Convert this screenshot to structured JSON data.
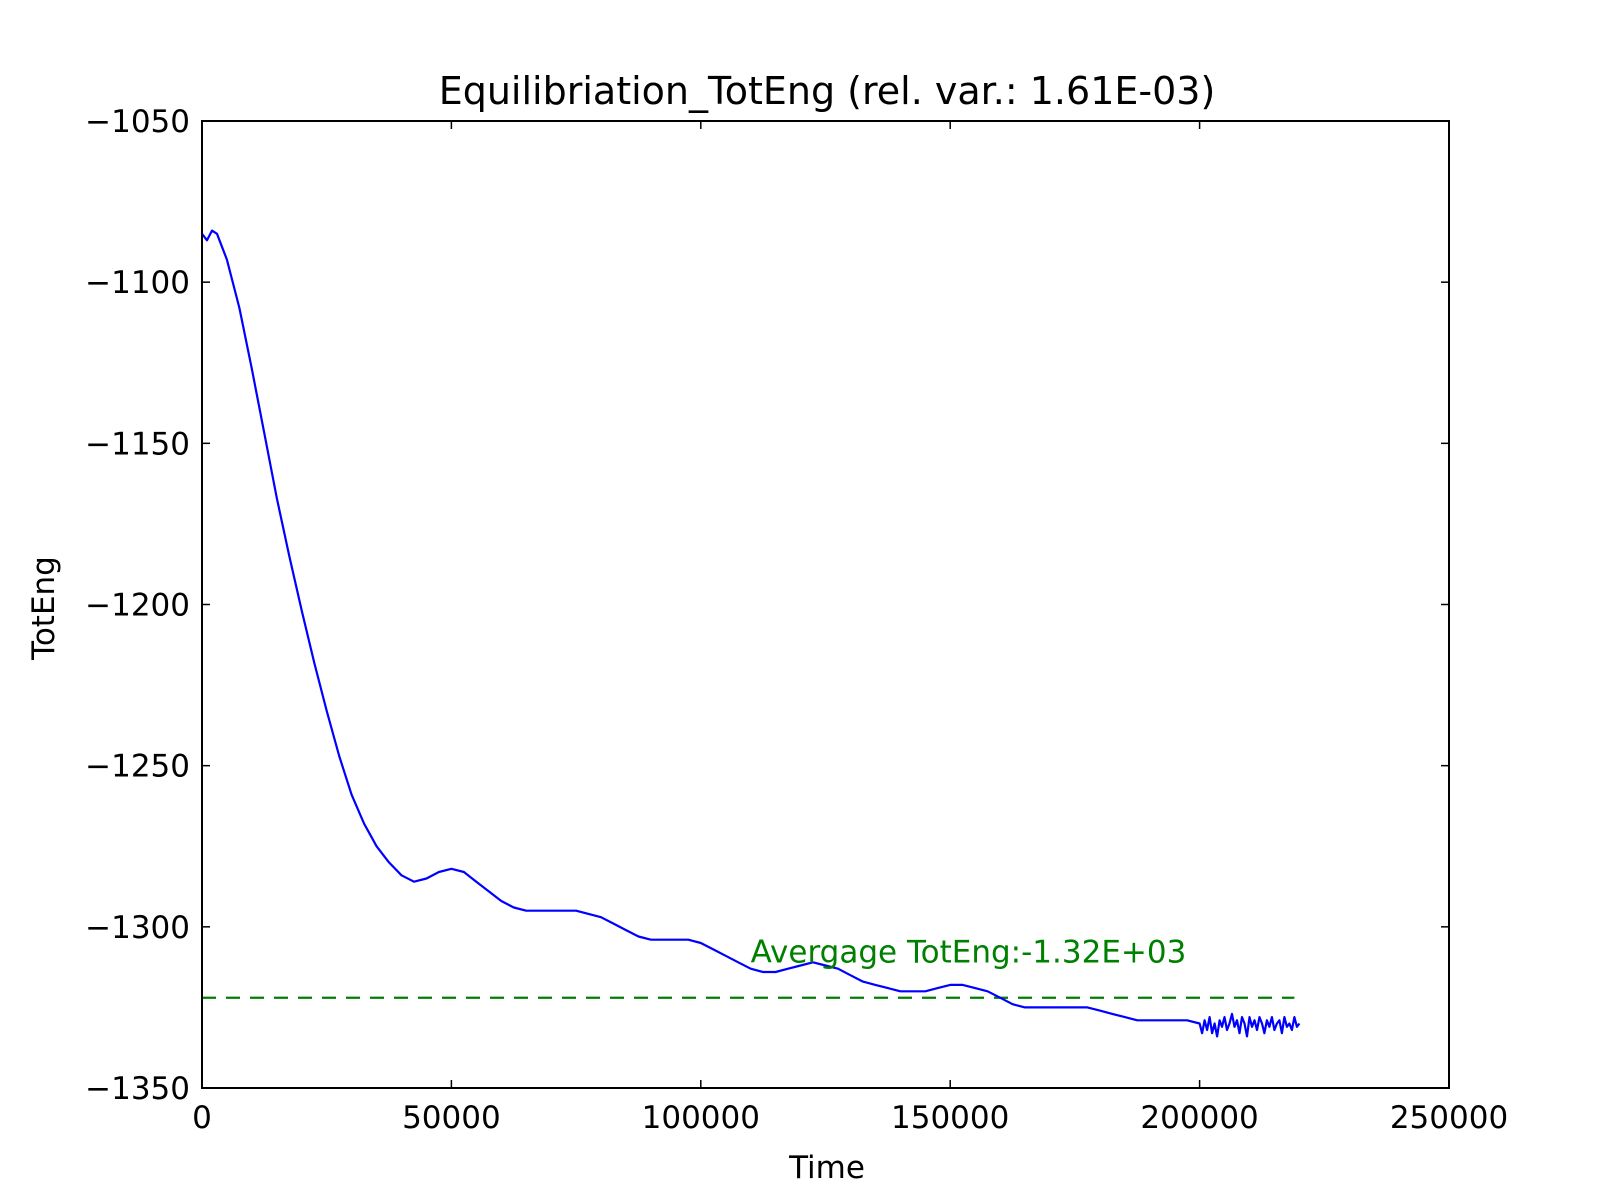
{
  "chart_data": {
    "type": "line",
    "title": "Equilibriation_TotEng (rel. var.: 1.61E-03)",
    "xlabel": "Time",
    "ylabel": "TotEng",
    "xlim": [
      0,
      250000
    ],
    "ylim": [
      -1350,
      -1050
    ],
    "xticks": [
      0,
      50000,
      100000,
      150000,
      200000,
      250000
    ],
    "yticks": [
      -1050,
      -1100,
      -1150,
      -1200,
      -1250,
      -1300,
      -1350
    ],
    "grid": false,
    "series": [
      {
        "color": "#0000ff",
        "x": [
          0,
          1000,
          2000,
          3000,
          5000,
          7500,
          10000,
          12500,
          15000,
          17500,
          20000,
          22500,
          25000,
          27500,
          30000,
          32500,
          35000,
          37500,
          40000,
          42500,
          45000,
          47500,
          50000,
          52500,
          55000,
          57500,
          60000,
          62500,
          65000,
          67500,
          70000,
          75000,
          80000,
          82500,
          85000,
          87500,
          90000,
          92500,
          95000,
          97500,
          100000,
          102500,
          105000,
          107500,
          110000,
          112500,
          115000,
          117500,
          120000,
          122500,
          125000,
          127500,
          130000,
          132500,
          135000,
          137500,
          140000,
          142500,
          145000,
          147500,
          150000,
          152500,
          155000,
          157500,
          160000,
          162500,
          165000,
          167500,
          170000,
          172500,
          175000,
          177500,
          180000,
          182500,
          185000,
          187500,
          190000,
          192500,
          195000,
          197500,
          200000,
          200500,
          201000,
          201500,
          202000,
          202500,
          203000,
          203500,
          204000,
          204500,
          205000,
          205500,
          206000,
          206500,
          207000,
          207500,
          208000,
          208500,
          209000,
          209500,
          210000,
          210500,
          211000,
          211500,
          212000,
          212500,
          213000,
          213500,
          214000,
          214500,
          215000,
          215500,
          216000,
          216500,
          217000,
          217500,
          218000,
          218500,
          219000,
          219500,
          220000
        ],
        "y": [
          -1085,
          -1087,
          -1084,
          -1085,
          -1093,
          -1108,
          -1127,
          -1147,
          -1167,
          -1185,
          -1202,
          -1218,
          -1233,
          -1247,
          -1259,
          -1268,
          -1275,
          -1280,
          -1284,
          -1286,
          -1285,
          -1283,
          -1282,
          -1283,
          -1286,
          -1289,
          -1292,
          -1294,
          -1295,
          -1295,
          -1295,
          -1295,
          -1297,
          -1299,
          -1301,
          -1303,
          -1304,
          -1304,
          -1304,
          -1304,
          -1305,
          -1307,
          -1309,
          -1311,
          -1313,
          -1314,
          -1314,
          -1313,
          -1312,
          -1311,
          -1312,
          -1313,
          -1315,
          -1317,
          -1318,
          -1319,
          -1320,
          -1320,
          -1320,
          -1319,
          -1318,
          -1318,
          -1319,
          -1320,
          -1322,
          -1324,
          -1325,
          -1325,
          -1325,
          -1325,
          -1325,
          -1325,
          -1326,
          -1327,
          -1328,
          -1329,
          -1329,
          -1329,
          -1329,
          -1329,
          -1330,
          -1333,
          -1329,
          -1332,
          -1328,
          -1333,
          -1330,
          -1334,
          -1329,
          -1331,
          -1328,
          -1332,
          -1330,
          -1327,
          -1331,
          -1329,
          -1333,
          -1328,
          -1330,
          -1334,
          -1328,
          -1331,
          -1329,
          -1332,
          -1328,
          -1330,
          -1333,
          -1329,
          -1331,
          -1328,
          -1332,
          -1330,
          -1329,
          -1333,
          -1328,
          -1331,
          -1330,
          -1332,
          -1328,
          -1331,
          -1330
        ]
      }
    ],
    "reference_line": {
      "y": -1322,
      "x_range": [
        0,
        219000
      ],
      "color": "#008000",
      "style": "dashed"
    },
    "annotation": {
      "text": "Avergage TotEng:-1.32E+03",
      "x": 110000,
      "y": -1311,
      "color": "#008000"
    }
  }
}
